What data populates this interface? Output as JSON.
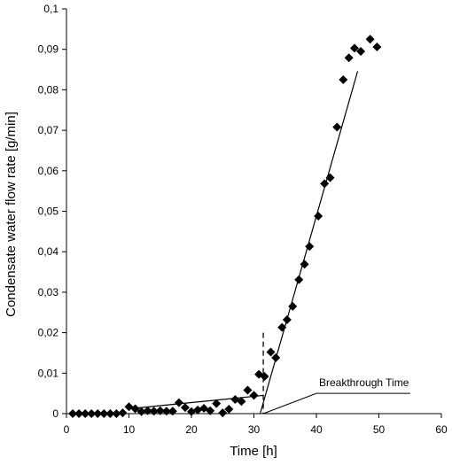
{
  "chart_data": {
    "type": "scatter",
    "title": "",
    "xlabel": "Time [h]",
    "ylabel": "Condensate water flow rate  [g/min]",
    "xlim": [
      0,
      60
    ],
    "ylim": [
      0,
      0.1
    ],
    "x_ticks": [
      "0",
      "10",
      "20",
      "30",
      "40",
      "50",
      "60"
    ],
    "y_ticks": [
      "0",
      "0,01",
      "0,02",
      "0,03",
      "0,04",
      "0,05",
      "0,06",
      "0,07",
      "0,08",
      "0,09",
      "0,1"
    ],
    "grid": false,
    "legend": "none",
    "marker": "diamond",
    "marker_color": "#000000",
    "series": [
      {
        "points": [
          [
            1,
            0
          ],
          [
            2,
            0
          ],
          [
            3,
            0
          ],
          [
            4,
            0
          ],
          [
            5,
            0
          ],
          [
            6,
            0
          ],
          [
            7,
            0
          ],
          [
            8,
            0
          ],
          [
            9,
            0.0002
          ],
          [
            10,
            0.0017
          ],
          [
            11,
            0.0012
          ],
          [
            12,
            0.0005
          ],
          [
            13,
            0.0007
          ],
          [
            14,
            0.0006
          ],
          [
            15,
            0.0007
          ],
          [
            16,
            0.0006
          ],
          [
            17,
            0.0006
          ],
          [
            18,
            0.0027
          ],
          [
            19,
            0.0015
          ],
          [
            20,
            0.0005
          ],
          [
            21,
            0.0009
          ],
          [
            22,
            0.0013
          ],
          [
            23,
            0.0007
          ],
          [
            24,
            0.0025
          ],
          [
            25,
            0.0002
          ],
          [
            26,
            0.0011
          ],
          [
            27,
            0.0035
          ],
          [
            28,
            0.003
          ],
          [
            29,
            0.0058
          ],
          [
            30,
            0.0045
          ],
          [
            30.8,
            0.0097
          ],
          [
            31.7,
            0.0092
          ],
          [
            32.7,
            0.0152
          ],
          [
            33.5,
            0.0138
          ],
          [
            34.5,
            0.0213
          ],
          [
            35.3,
            0.0232
          ],
          [
            36.2,
            0.0265
          ],
          [
            37.2,
            0.0331
          ],
          [
            38.1,
            0.0369
          ],
          [
            38.9,
            0.0413
          ],
          [
            40.3,
            0.0488
          ],
          [
            41.3,
            0.0568
          ],
          [
            42.2,
            0.0583
          ],
          [
            43.3,
            0.0708
          ],
          [
            44.3,
            0.0825
          ],
          [
            45.2,
            0.0879
          ],
          [
            46.1,
            0.0903
          ],
          [
            47.1,
            0.0895
          ],
          [
            48.6,
            0.0925
          ],
          [
            49.7,
            0.0906
          ]
        ]
      }
    ],
    "trend_lines": [
      {
        "from": [
          10,
          0.0012
        ],
        "to": [
          31.5,
          0.0045
        ]
      },
      {
        "from": [
          31,
          0
        ],
        "to": [
          46.6,
          0.0846
        ]
      }
    ],
    "vertical_marker": {
      "x": 31.5,
      "from": 0,
      "to": 0.02,
      "style": "dashed"
    },
    "annotations": [
      {
        "text": "Breakthrough Time",
        "line_from": [
          31.5,
          0
        ],
        "elbow": [
          40,
          0.005
        ],
        "line_to": [
          55,
          0.005
        ]
      }
    ]
  }
}
